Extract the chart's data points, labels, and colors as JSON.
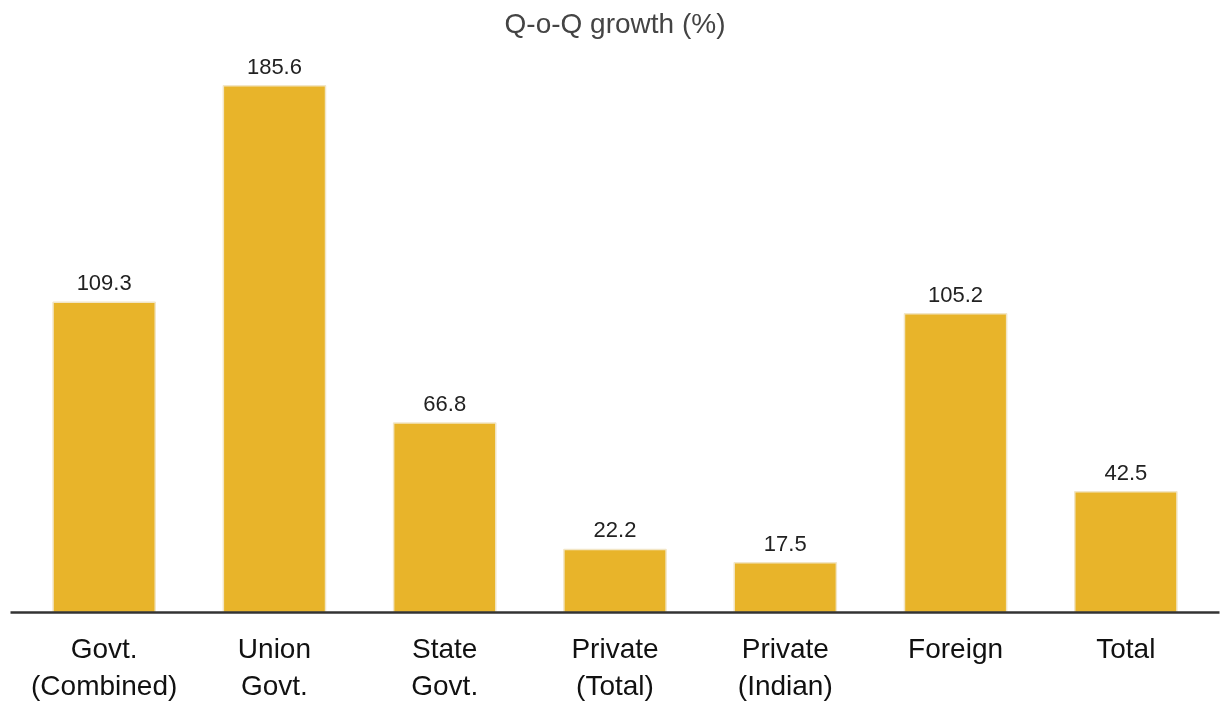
{
  "chart_data": {
    "type": "bar",
    "title": "Q-o-Q growth (%)",
    "categories": [
      "Govt.\n(Combined)",
      "Union\nGovt.",
      "State\nGovt.",
      "Private\n(Total)",
      "Private\n(Indian)",
      "Foreign",
      "Total"
    ],
    "values": [
      109.3,
      185.6,
      66.8,
      22.2,
      17.5,
      105.2,
      42.5
    ],
    "color": "#e8b42a",
    "data_labels": true
  }
}
